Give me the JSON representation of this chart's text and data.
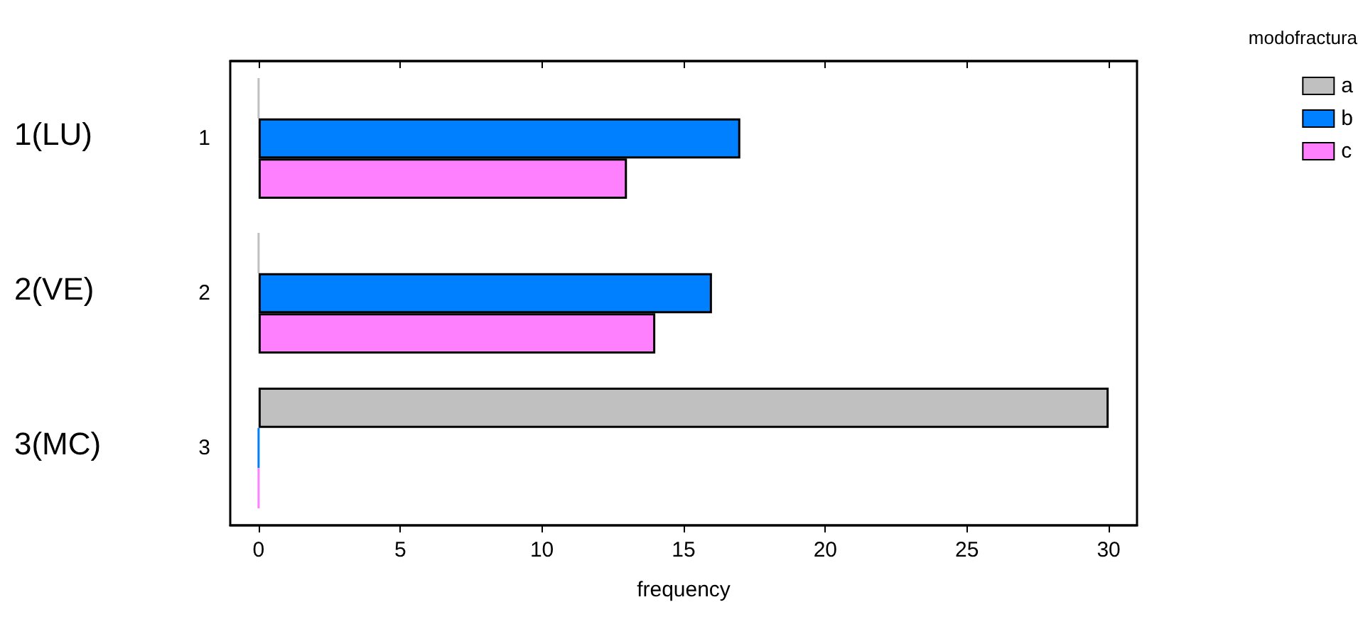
{
  "chart_data": {
    "type": "bar",
    "orientation": "horizontal",
    "xlabel": "frequency",
    "legend_title": "modofractura",
    "legend": "top right",
    "grid": false,
    "categories": [
      "1",
      "2",
      "3"
    ],
    "series": [
      {
        "name": "a",
        "color": "#c0c0c0",
        "values": [
          0,
          0,
          30
        ]
      },
      {
        "name": "b",
        "color": "#0080ff",
        "values": [
          17,
          16,
          0
        ]
      },
      {
        "name": "c",
        "color": "#ff80ff",
        "values": [
          13,
          14,
          0
        ]
      }
    ],
    "xlim": [
      -1,
      31
    ],
    "xticks": [
      0,
      5,
      10,
      15,
      20,
      25,
      30
    ],
    "annotations": [
      "1(LU)",
      "2(VE)",
      "3(MC)"
    ]
  }
}
